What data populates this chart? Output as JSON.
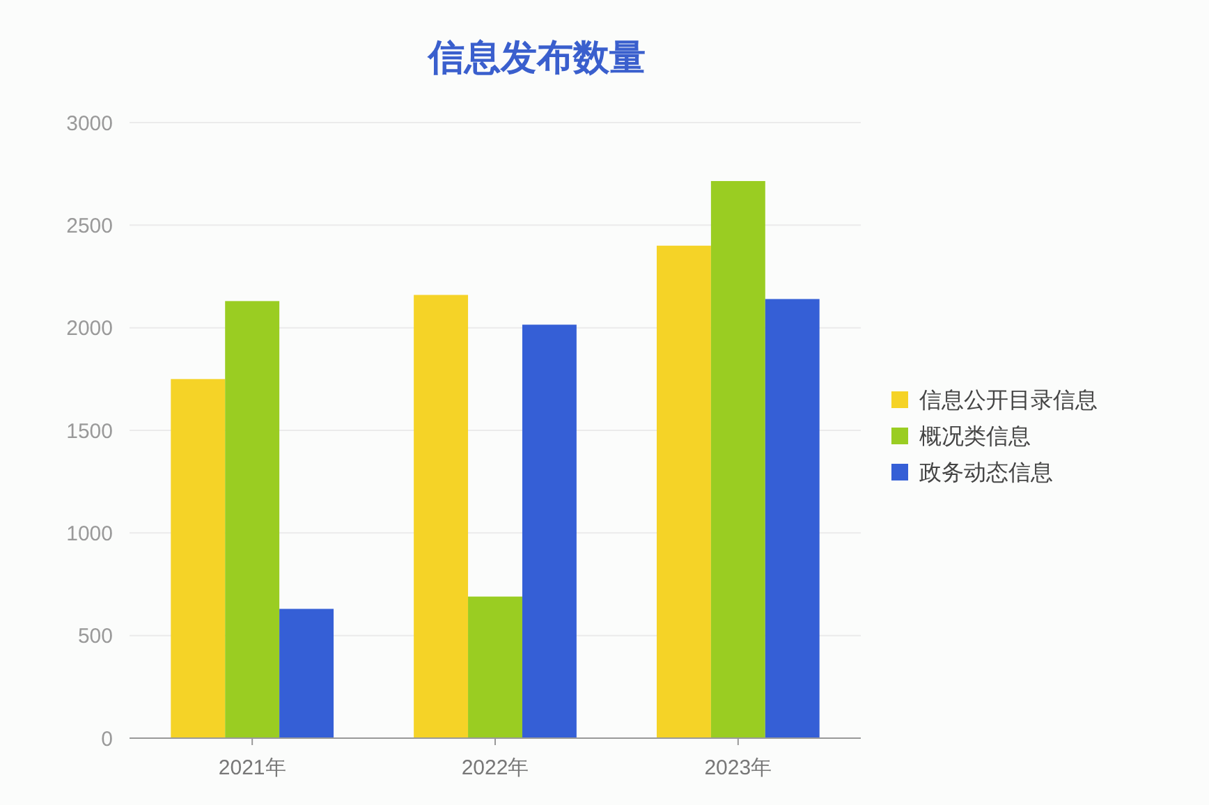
{
  "chart_data": {
    "type": "bar",
    "title": "信息发布数量",
    "categories": [
      "2021年",
      "2022年",
      "2023年"
    ],
    "series": [
      {
        "name": "信息公开目录信息",
        "color": "#f5d327",
        "values": [
          1750,
          2160,
          2400
        ]
      },
      {
        "name": "概况类信息",
        "color": "#9acd22",
        "values": [
          2130,
          690,
          2715
        ]
      },
      {
        "name": "政务动态信息",
        "color": "#355fd6",
        "values": [
          630,
          2015,
          2140
        ]
      }
    ],
    "ylim": [
      0,
      3000
    ],
    "yticks": [
      0,
      500,
      1000,
      1500,
      2000,
      2500,
      3000
    ],
    "grid": "y",
    "legend": "right"
  }
}
